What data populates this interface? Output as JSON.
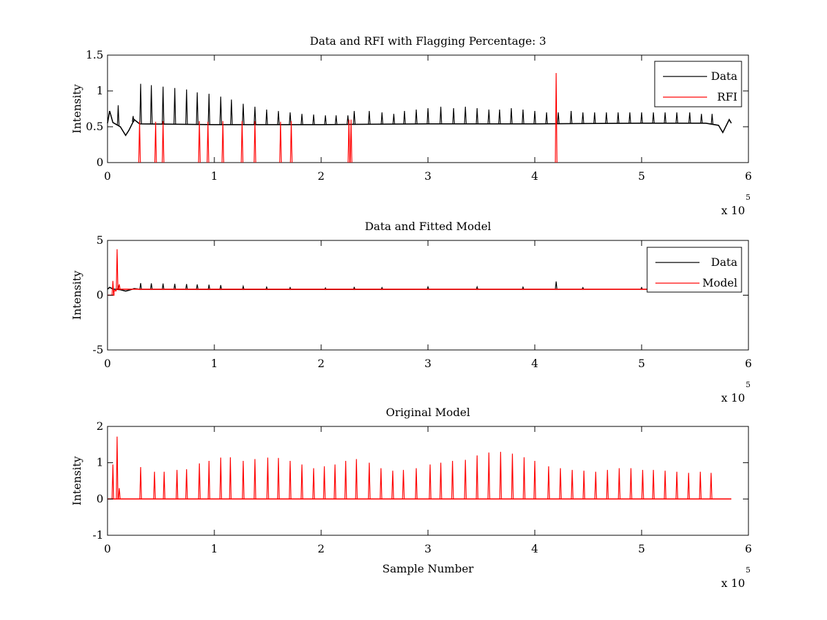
{
  "figure": {
    "background": "#ffffff"
  },
  "chart_data": [
    {
      "type": "line",
      "title": "Data and RFI with Flagging Percentage: 3",
      "xlabel": "",
      "ylabel": "Intensity",
      "xlim": [
        0,
        6
      ],
      "ylim": [
        0,
        1.5
      ],
      "x_ticks": [
        "0",
        "1",
        "2",
        "3",
        "4",
        "5",
        "6"
      ],
      "y_ticks": [
        "0",
        "0.5",
        "1",
        "1.5"
      ],
      "x_multiplier": {
        "base": "x 10",
        "exponent": "5"
      },
      "grid": false,
      "legend_position": "top-right",
      "series": [
        {
          "name": "Data",
          "color": "#000000",
          "baseline": [
            [
              0,
              0.55
            ],
            [
              0.02,
              0.72
            ],
            [
              0.05,
              0.56
            ],
            [
              0.12,
              0.5
            ],
            [
              0.17,
              0.38
            ],
            [
              0.2,
              0.45
            ],
            [
              0.25,
              0.6
            ],
            [
              0.3,
              0.54
            ],
            [
              1.0,
              0.53
            ],
            [
              2.0,
              0.53
            ],
            [
              3.0,
              0.54
            ],
            [
              4.0,
              0.54
            ],
            [
              5.0,
              0.55
            ],
            [
              5.6,
              0.55
            ],
            [
              5.72,
              0.52
            ],
            [
              5.76,
              0.42
            ],
            [
              5.82,
              0.6
            ],
            [
              5.84,
              0.55
            ]
          ],
          "spikes": [
            [
              0.1,
              0.8
            ],
            [
              0.24,
              0.65
            ],
            [
              0.31,
              1.1
            ],
            [
              0.41,
              1.08
            ],
            [
              0.52,
              1.06
            ],
            [
              0.63,
              1.04
            ],
            [
              0.74,
              1.02
            ],
            [
              0.84,
              0.98
            ],
            [
              0.95,
              0.96
            ],
            [
              1.06,
              0.92
            ],
            [
              1.16,
              0.88
            ],
            [
              1.27,
              0.82
            ],
            [
              1.38,
              0.78
            ],
            [
              1.49,
              0.74
            ],
            [
              1.6,
              0.72
            ],
            [
              1.71,
              0.7
            ],
            [
              1.82,
              0.68
            ],
            [
              1.93,
              0.67
            ],
            [
              2.04,
              0.66
            ],
            [
              2.14,
              0.66
            ],
            [
              2.25,
              0.66
            ],
            [
              2.31,
              0.72
            ],
            [
              2.45,
              0.72
            ],
            [
              2.57,
              0.7
            ],
            [
              2.68,
              0.68
            ],
            [
              2.78,
              0.72
            ],
            [
              2.89,
              0.74
            ],
            [
              3.0,
              0.76
            ],
            [
              3.12,
              0.78
            ],
            [
              3.24,
              0.76
            ],
            [
              3.35,
              0.78
            ],
            [
              3.46,
              0.76
            ],
            [
              3.57,
              0.74
            ],
            [
              3.67,
              0.74
            ],
            [
              3.78,
              0.76
            ],
            [
              3.89,
              0.74
            ],
            [
              4.0,
              0.72
            ],
            [
              4.11,
              0.7
            ],
            [
              4.22,
              0.7
            ],
            [
              4.34,
              0.72
            ],
            [
              4.45,
              0.7
            ],
            [
              4.56,
              0.7
            ],
            [
              4.67,
              0.7
            ],
            [
              4.78,
              0.7
            ],
            [
              4.89,
              0.7
            ],
            [
              5.0,
              0.7
            ],
            [
              5.11,
              0.7
            ],
            [
              5.22,
              0.7
            ],
            [
              5.33,
              0.7
            ],
            [
              5.45,
              0.7
            ],
            [
              5.56,
              0.68
            ],
            [
              5.66,
              0.68
            ]
          ]
        },
        {
          "name": "RFI",
          "color": "#ff0000",
          "spikes": [
            [
              0.3,
              0.58
            ],
            [
              0.45,
              0.57
            ],
            [
              0.52,
              0.58
            ],
            [
              0.86,
              0.58
            ],
            [
              0.94,
              0.57
            ],
            [
              1.08,
              0.58
            ],
            [
              1.26,
              0.58
            ],
            [
              1.38,
              0.58
            ],
            [
              1.62,
              0.57
            ],
            [
              1.72,
              0.58
            ],
            [
              2.26,
              0.6
            ],
            [
              2.28,
              0.6
            ],
            [
              4.2,
              1.25
            ]
          ]
        }
      ]
    },
    {
      "type": "line",
      "title": "Data and Fitted Model",
      "xlabel": "",
      "ylabel": "Intensity",
      "xlim": [
        0,
        6
      ],
      "ylim": [
        -5,
        5
      ],
      "x_ticks": [
        "0",
        "1",
        "2",
        "3",
        "4",
        "5",
        "6"
      ],
      "y_ticks": [
        "-5",
        "0",
        "5"
      ],
      "x_multiplier": {
        "base": "x 10",
        "exponent": "5"
      },
      "grid": false,
      "legend_position": "top-right",
      "series": [
        {
          "name": "Data",
          "color": "#000000",
          "baseline": [
            [
              0,
              0.55
            ],
            [
              0.02,
              0.72
            ],
            [
              0.05,
              0.56
            ],
            [
              0.12,
              0.5
            ],
            [
              0.17,
              0.38
            ],
            [
              0.2,
              0.45
            ],
            [
              0.25,
              0.6
            ],
            [
              0.3,
              0.54
            ],
            [
              1.0,
              0.53
            ],
            [
              2.0,
              0.53
            ],
            [
              3.0,
              0.54
            ],
            [
              4.0,
              0.54
            ],
            [
              5.0,
              0.55
            ],
            [
              5.6,
              0.55
            ],
            [
              5.72,
              0.52
            ],
            [
              5.76,
              0.42
            ],
            [
              5.82,
              0.6
            ],
            [
              5.84,
              0.55
            ]
          ],
          "spikes": [
            [
              0.1,
              0.8
            ],
            [
              0.31,
              1.1
            ],
            [
              0.41,
              1.08
            ],
            [
              0.52,
              1.06
            ],
            [
              0.63,
              1.04
            ],
            [
              0.74,
              1.02
            ],
            [
              0.84,
              0.98
            ],
            [
              0.95,
              0.96
            ],
            [
              1.06,
              0.92
            ],
            [
              1.27,
              0.82
            ],
            [
              1.49,
              0.74
            ],
            [
              1.71,
              0.7
            ],
            [
              2.04,
              0.66
            ],
            [
              2.31,
              0.72
            ],
            [
              2.57,
              0.7
            ],
            [
              3.0,
              0.76
            ],
            [
              3.46,
              0.76
            ],
            [
              3.89,
              0.74
            ],
            [
              4.2,
              1.25
            ],
            [
              4.45,
              0.7
            ],
            [
              5.0,
              0.7
            ]
          ]
        },
        {
          "name": "Model",
          "color": "#ff0000",
          "baseline": [
            [
              0,
              0.0
            ],
            [
              0.06,
              0.0
            ],
            [
              0.06,
              0.4
            ],
            [
              0.08,
              0.4
            ],
            [
              0.08,
              0.55
            ],
            [
              0.15,
              0.55
            ],
            [
              0.2,
              0.55
            ],
            [
              1.0,
              0.55
            ],
            [
              2.0,
              0.55
            ],
            [
              3.0,
              0.55
            ],
            [
              4.0,
              0.55
            ],
            [
              5.0,
              0.55
            ],
            [
              5.84,
              0.55
            ]
          ],
          "spikes": [
            [
              0.09,
              4.2
            ],
            [
              0.05,
              1.3
            ],
            [
              0.11,
              1.0
            ]
          ]
        }
      ]
    },
    {
      "type": "line",
      "title": "Original Model",
      "xlabel": "Sample Number",
      "ylabel": "Intensity",
      "xlim": [
        0,
        6
      ],
      "ylim": [
        -1,
        2
      ],
      "x_ticks": [
        "0",
        "1",
        "2",
        "3",
        "4",
        "5",
        "6"
      ],
      "y_ticks": [
        "-1",
        "0",
        "1",
        "2"
      ],
      "x_multiplier": {
        "base": "x 10",
        "exponent": "5"
      },
      "grid": false,
      "legend_position": "none",
      "series": [
        {
          "color": "#ff0000",
          "baseline": [
            [
              0.0,
              0.0
            ],
            [
              5.84,
              0.0
            ]
          ],
          "spikes": [
            [
              0.05,
              0.95
            ],
            [
              0.09,
              1.72
            ],
            [
              0.11,
              0.3
            ],
            [
              0.31,
              0.88
            ],
            [
              0.44,
              0.75
            ],
            [
              0.53,
              0.75
            ],
            [
              0.65,
              0.8
            ],
            [
              0.74,
              0.82
            ],
            [
              0.86,
              0.98
            ],
            [
              0.95,
              1.05
            ],
            [
              1.06,
              1.14
            ],
            [
              1.15,
              1.15
            ],
            [
              1.27,
              1.05
            ],
            [
              1.38,
              1.1
            ],
            [
              1.5,
              1.14
            ],
            [
              1.6,
              1.13
            ],
            [
              1.71,
              1.05
            ],
            [
              1.82,
              0.95
            ],
            [
              1.93,
              0.85
            ],
            [
              2.03,
              0.9
            ],
            [
              2.13,
              0.95
            ],
            [
              2.23,
              1.05
            ],
            [
              2.33,
              1.1
            ],
            [
              2.45,
              1.0
            ],
            [
              2.56,
              0.85
            ],
            [
              2.67,
              0.78
            ],
            [
              2.77,
              0.8
            ],
            [
              2.89,
              0.85
            ],
            [
              3.02,
              0.95
            ],
            [
              3.12,
              1.0
            ],
            [
              3.23,
              1.05
            ],
            [
              3.35,
              1.08
            ],
            [
              3.46,
              1.2
            ],
            [
              3.57,
              1.28
            ],
            [
              3.68,
              1.3
            ],
            [
              3.79,
              1.25
            ],
            [
              3.9,
              1.15
            ],
            [
              4.0,
              1.05
            ],
            [
              4.13,
              0.9
            ],
            [
              4.24,
              0.85
            ],
            [
              4.35,
              0.8
            ],
            [
              4.46,
              0.78
            ],
            [
              4.57,
              0.75
            ],
            [
              4.68,
              0.8
            ],
            [
              4.79,
              0.85
            ],
            [
              4.9,
              0.85
            ],
            [
              5.01,
              0.8
            ],
            [
              5.11,
              0.8
            ],
            [
              5.22,
              0.78
            ],
            [
              5.33,
              0.75
            ],
            [
              5.44,
              0.72
            ],
            [
              5.55,
              0.75
            ],
            [
              5.65,
              0.72
            ]
          ]
        }
      ]
    }
  ]
}
